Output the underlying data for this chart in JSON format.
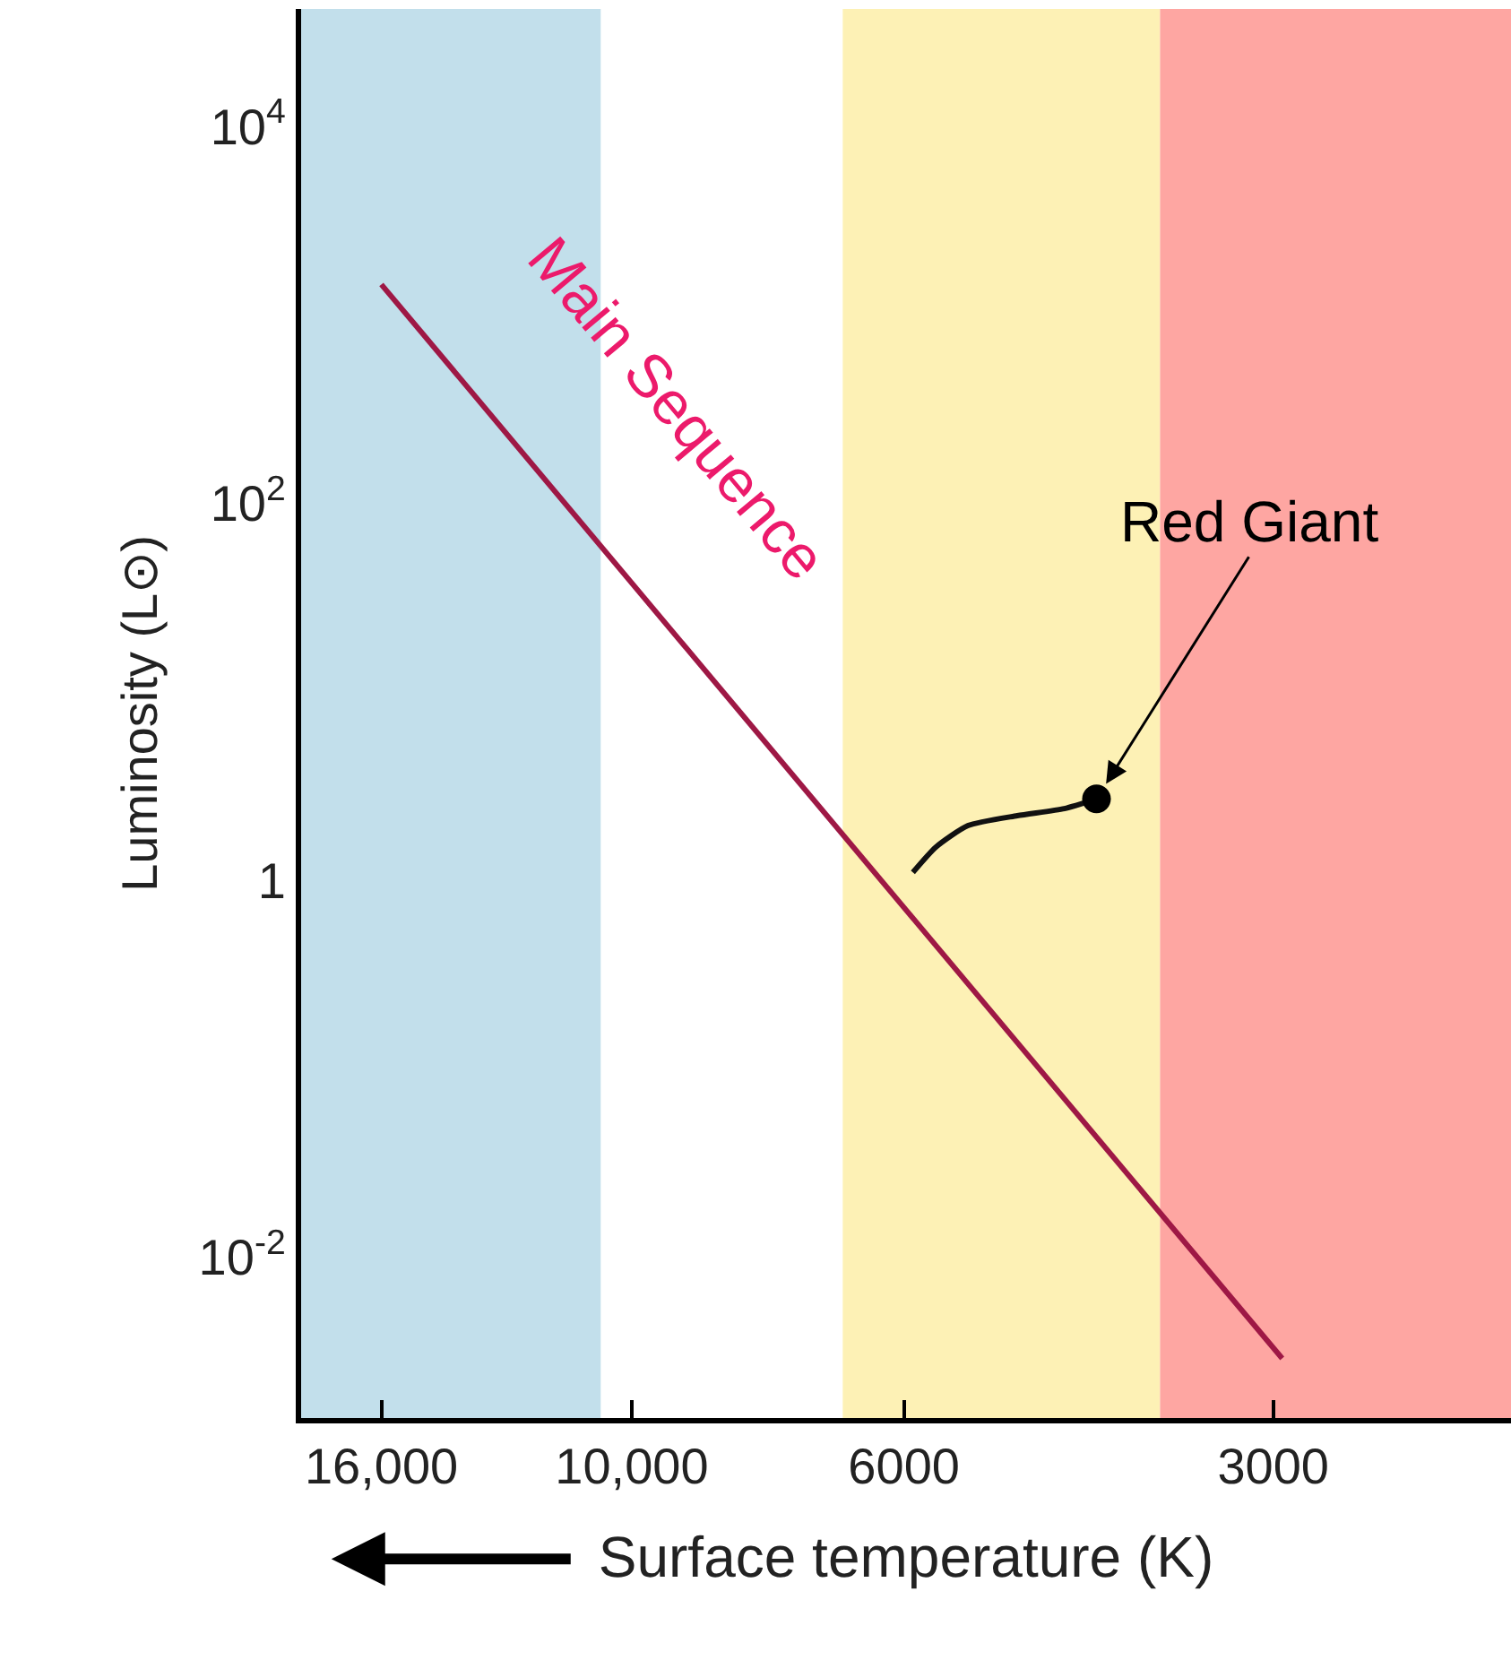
{
  "chart_data": {
    "type": "line",
    "xlabel": "Surface temperature (K)",
    "ylabel": "Luminosity (L⊙)",
    "log": "xy",
    "xlim": [
      18600,
      1920
    ],
    "xticks": [
      {
        "value": 16000,
        "label": "16,000"
      },
      {
        "value": 10000,
        "label": "10,000"
      },
      6000,
      3000
    ],
    "ylim": [
      0.0014,
      42000
    ],
    "yticks": [
      {
        "value": 10000,
        "label": "10$^{4}$"
      },
      {
        "value": 100,
        "label": "10$^{2}$"
      },
      1,
      {
        "value": 0.01,
        "label": "10$^{-2}$"
      }
    ],
    "grid": false,
    "legend": false,
    "marker": "none",
    "line_style": "solid",
    "series": [
      {
        "name": "Main Sequence",
        "color": "#9e1845",
        "x": [
          16000,
          2950
        ],
        "values": [
          1450,
          0.0029
        ]
      },
      {
        "color": "#111111",
        "x": [
          5900,
          5650,
          5320,
          4850,
          4440,
          4180
        ],
        "values": [
          1.1,
          1.5,
          1.95,
          2.2,
          2.4,
          2.7
        ]
      },
      {
        "type": "scatter",
        "marker": "circle",
        "color": "#000000",
        "x": [
          4180
        ],
        "values": [
          2.7
        ]
      }
    ],
    "annotations": [
      {
        "text": "Red Giant",
        "x": 4180,
        "y": 2.7
      }
    ],
    "bands": [
      {
        "axis": "x",
        "from": 18600,
        "to": 10600,
        "color": "#c2dfeb"
      },
      {
        "axis": "x",
        "from": 6730,
        "to": 3710,
        "color": "#fdf1b5"
      },
      {
        "axis": "x",
        "from": 3710,
        "to": 1920,
        "color": "#fea6a2"
      }
    ]
  }
}
